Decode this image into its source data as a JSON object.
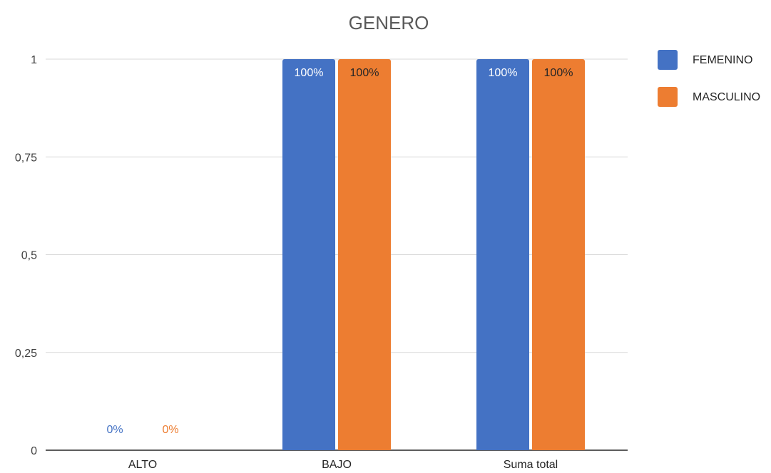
{
  "chart_data": {
    "type": "bar",
    "title": "GENERO",
    "xlabel": "",
    "ylabel": "",
    "categories": [
      "ALTO",
      "BAJO",
      "Suma total"
    ],
    "series": [
      {
        "name": "FEMENINO",
        "color": "#4472C4",
        "values": [
          0,
          1,
          1
        ],
        "labels": [
          "0%",
          "100%",
          "100%"
        ]
      },
      {
        "name": "MASCULINO",
        "color": "#ED7D31",
        "values": [
          0,
          1,
          1
        ],
        "labels": [
          "0%",
          "100%",
          "100%"
        ]
      }
    ],
    "ylim": [
      0,
      1
    ],
    "yticks": [
      0,
      0.25,
      0.5,
      0.75,
      1
    ],
    "ytick_labels": [
      "0",
      "0,25",
      "0,5",
      "0,75",
      "1"
    ],
    "grid": true,
    "legend": "right"
  }
}
